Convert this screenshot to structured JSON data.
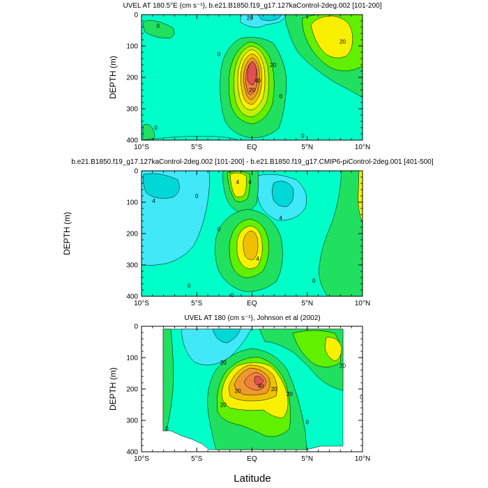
{
  "figure": {
    "shared_ylabel": "DEPTH (m)",
    "xlabel": "Latitude",
    "x_ticks": [
      "10°S",
      "5°S",
      "EQ",
      "5°N",
      "10°N"
    ],
    "y_ticks": [
      "0",
      "100",
      "200",
      "300",
      "400"
    ]
  },
  "chart_data": [
    {
      "type": "contour",
      "title": "UVEL AT 180.5°E (cm s⁻¹), b.e21.B1850.f19_g17.127kaControl-2deg.002 [101-200]",
      "ylabel": "DEPTH (m)",
      "xlim": [
        -10,
        10
      ],
      "ylim": [
        400,
        0
      ],
      "colors": [
        "#00d8d8",
        "#40e8f8",
        "#00ffc8",
        "#20e060",
        "#60f000",
        "#c0f000",
        "#f8f000",
        "#f0c000",
        "#f09830",
        "#f08040",
        "#e05050"
      ],
      "contour_labels": [
        {
          "text": "20",
          "x": -0.2,
          "y": 10
        },
        {
          "text": "0",
          "x": -8.5,
          "y": 35
        },
        {
          "text": "20",
          "x": 8.2,
          "y": 85
        },
        {
          "text": "0",
          "x": -3.0,
          "y": 125
        },
        {
          "text": "20",
          "x": 1.9,
          "y": 160
        },
        {
          "text": "40",
          "x": 0.5,
          "y": 210
        },
        {
          "text": "20",
          "x": 0.0,
          "y": 240
        },
        {
          "text": "0",
          "x": 2.6,
          "y": 260
        },
        {
          "text": "0",
          "x": -8.7,
          "y": 360
        },
        {
          "text": "0",
          "x": 4.6,
          "y": 385
        }
      ]
    },
    {
      "type": "contour",
      "title": "b.e21.B1850.f19_g17.127kaControl-2deg.002 [101-200] - b.e21.B1850.f19_g17.CMIP6-piControl-2deg.001 [401-500]",
      "ylabel": "",
      "xlim": [
        -10,
        10
      ],
      "ylim": [
        400,
        0
      ],
      "contour_labels": [
        {
          "text": "4",
          "x": -1.3,
          "y": 35
        },
        {
          "text": "4",
          "x": -0.2,
          "y": 35
        },
        {
          "text": "4",
          "x": -8.9,
          "y": 95
        },
        {
          "text": "4",
          "x": 2.6,
          "y": 150
        },
        {
          "text": "0",
          "x": -5.0,
          "y": 80
        },
        {
          "text": "0",
          "x": -3.0,
          "y": 185
        },
        {
          "text": "4",
          "x": 0.5,
          "y": 280
        },
        {
          "text": "0",
          "x": -5.7,
          "y": 365
        },
        {
          "text": "0",
          "x": 5.6,
          "y": 350
        },
        {
          "text": "0",
          "x": -1.8,
          "y": 395
        }
      ]
    },
    {
      "type": "contour",
      "title": "UVEL AT 180 (cm s⁻¹), Johnson et al (2002)",
      "ylabel": "DEPTH (m)",
      "xlim": [
        -10,
        10
      ],
      "ylim": [
        400,
        0
      ],
      "contour_labels": [
        {
          "text": "20",
          "x": -2.6,
          "y": 115
        },
        {
          "text": "20",
          "x": 8.2,
          "y": 125
        },
        {
          "text": "20",
          "x": -1.3,
          "y": 205
        },
        {
          "text": "40",
          "x": 0.8,
          "y": 190
        },
        {
          "text": "20",
          "x": 2.0,
          "y": 200
        },
        {
          "text": "20",
          "x": 3.4,
          "y": 215
        },
        {
          "text": "0",
          "x": 9.9,
          "y": 225
        },
        {
          "text": "20",
          "x": -2.6,
          "y": 250
        },
        {
          "text": "0",
          "x": -7.7,
          "y": 325
        },
        {
          "text": "0",
          "x": 5.0,
          "y": 305
        }
      ]
    }
  ]
}
